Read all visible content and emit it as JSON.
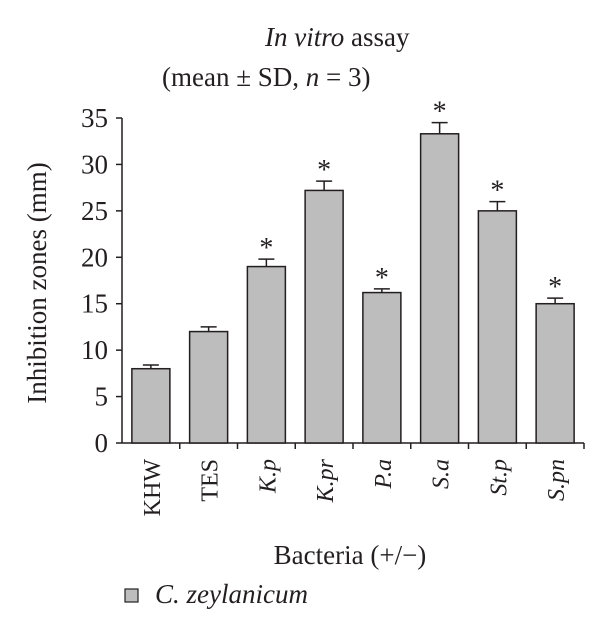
{
  "chart_data": {
    "type": "bar",
    "title_italic": "In vitro",
    "title_rest": " assay",
    "subtitle_pre": "(mean ± SD, ",
    "subtitle_n": "n",
    "subtitle_post": " = 3)",
    "xlabel": "Bacteria (+/−)",
    "ylabel": "Inhibition zones (mm)",
    "ylim": [
      0,
      35
    ],
    "yticks": [
      0,
      5,
      10,
      15,
      20,
      25,
      30,
      35
    ],
    "categories": [
      "KHW",
      "TES",
      "K.p",
      "K.pr",
      "P.a",
      "S.a",
      "St.p",
      "S.pn"
    ],
    "category_italic": [
      false,
      false,
      true,
      true,
      true,
      true,
      true,
      true
    ],
    "series": [
      {
        "name": "C. zeylanicum",
        "color": "#bdbdbd",
        "values": [
          8.0,
          12.0,
          19.0,
          27.2,
          16.2,
          33.3,
          25.0,
          15.0
        ],
        "errors": [
          0.4,
          0.5,
          0.8,
          1.0,
          0.4,
          1.2,
          1.0,
          0.6
        ],
        "significance": [
          "",
          "",
          "*",
          "*",
          "*",
          "*",
          "*",
          "*"
        ]
      }
    ],
    "legend_position": "bottom-left",
    "grid": false
  }
}
